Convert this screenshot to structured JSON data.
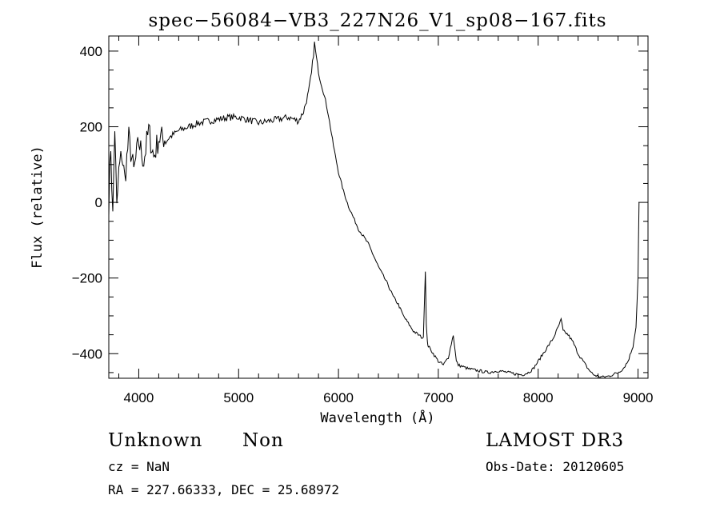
{
  "chart_data": {
    "type": "line",
    "title": "spec−56084−VB3_227N26_V1_sp08−167.fits",
    "xlabel": "Wavelength (Å)",
    "ylabel": "Flux (relative)",
    "xlim": [
      3700,
      9100
    ],
    "ylim": [
      -465,
      440
    ],
    "x_ticks": [
      4000,
      5000,
      6000,
      7000,
      8000,
      9000
    ],
    "x_tick_labels": [
      "4000",
      "5000",
      "6000",
      "7000",
      "8000",
      "9000"
    ],
    "y_ticks": [
      -400,
      -200,
      0,
      200,
      400
    ],
    "y_tick_labels": [
      "−400",
      "−200",
      "0",
      "200",
      "400"
    ],
    "grid": false,
    "series": [
      {
        "name": "flux",
        "x": [
          3700,
          3720,
          3740,
          3760,
          3780,
          3800,
          3830,
          3860,
          3900,
          3950,
          4000,
          4050,
          4100,
          4150,
          4200,
          4300,
          4400,
          4500,
          4600,
          4700,
          4800,
          4900,
          5000,
          5100,
          5200,
          5300,
          5400,
          5500,
          5600,
          5650,
          5700,
          5730,
          5760,
          5790,
          5810,
          5840,
          5870,
          5900,
          5950,
          6000,
          6050,
          6100,
          6150,
          6200,
          6250,
          6300,
          6350,
          6400,
          6450,
          6500,
          6550,
          6600,
          6650,
          6700,
          6750,
          6800,
          6850,
          6870,
          6880,
          6890,
          6900,
          6950,
          7000,
          7050,
          7100,
          7150,
          7180,
          7200,
          7250,
          7300,
          7400,
          7500,
          7600,
          7700,
          7800,
          7850,
          7900,
          7950,
          8000,
          8050,
          8100,
          8150,
          8200,
          8230,
          8250,
          8300,
          8350,
          8400,
          8450,
          8500,
          8550,
          8600,
          8650,
          8700,
          8750,
          8800,
          8850,
          8900,
          8950,
          8980,
          9000,
          9010
        ],
        "y": [
          0,
          150,
          -40,
          200,
          -20,
          80,
          130,
          60,
          170,
          80,
          160,
          110,
          190,
          120,
          170,
          170,
          190,
          200,
          210,
          215,
          220,
          225,
          225,
          218,
          210,
          215,
          220,
          225,
          215,
          240,
          290,
          340,
          420,
          360,
          330,
          300,
          270,
          230,
          150,
          80,
          30,
          -10,
          -40,
          -70,
          -90,
          -110,
          -140,
          -170,
          -195,
          -220,
          -250,
          -270,
          -300,
          -320,
          -340,
          -350,
          -360,
          -180,
          -320,
          -370,
          -380,
          -400,
          -420,
          -430,
          -410,
          -350,
          -420,
          -430,
          -435,
          -440,
          -445,
          -450,
          -445,
          -450,
          -455,
          -455,
          -450,
          -440,
          -420,
          -400,
          -380,
          -360,
          -330,
          -310,
          -340,
          -350,
          -370,
          -400,
          -420,
          -440,
          -455,
          -460,
          -462,
          -460,
          -455,
          -450,
          -440,
          -420,
          -380,
          -330,
          -200,
          0
        ]
      }
    ]
  },
  "footer": {
    "class_label": "Unknown",
    "subclass_label": "Non",
    "survey_label": "LAMOST DR3",
    "redshift": "cz = NaN",
    "coordinates": "RA = 227.66333, DEC =  25.68972",
    "obs_date": "Obs-Date: 20120605"
  }
}
